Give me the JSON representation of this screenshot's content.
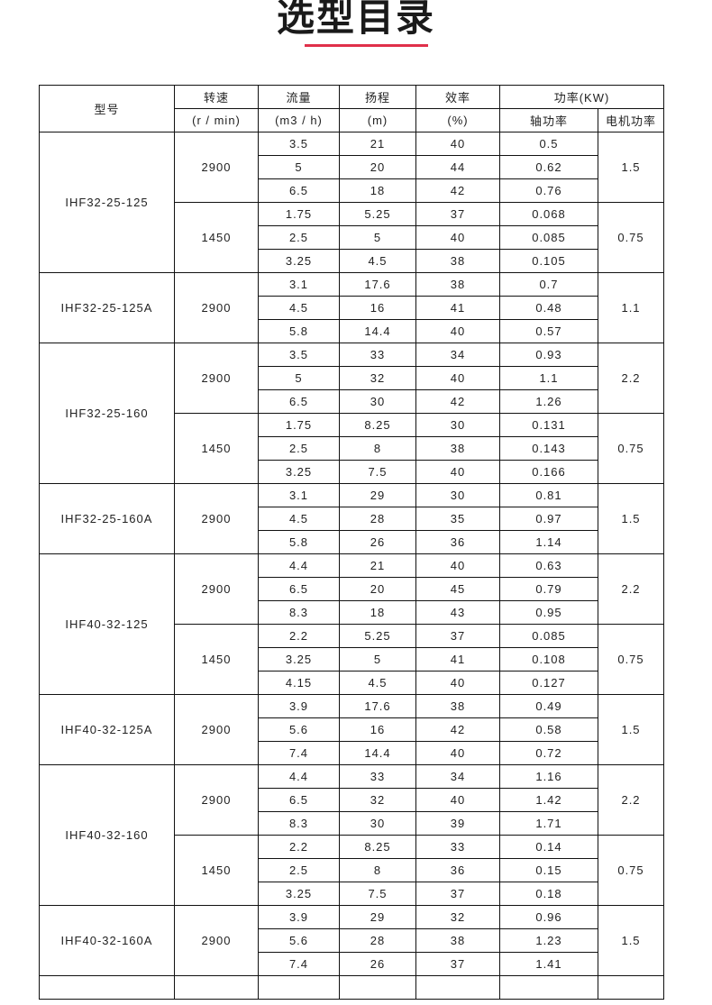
{
  "title": "选型目录",
  "accent_color": "#e0304a",
  "header": {
    "model": "型号",
    "speed": "转速",
    "speed_unit": "(r / min)",
    "flow": "流量",
    "flow_unit": "(m3 / h)",
    "head": "扬程",
    "head_unit": "(m)",
    "eff": "效率",
    "eff_unit": "(%)",
    "power": "功率(KW)",
    "shaft_power": "轴功率",
    "motor_power": "电机功率"
  },
  "models": [
    {
      "model": "IHF32-25-125",
      "speeds": [
        {
          "speed": "2900",
          "motor": "1.5",
          "rows": [
            [
              "3.5",
              "21",
              "40",
              "0.5"
            ],
            [
              "5",
              "20",
              "44",
              "0.62"
            ],
            [
              "6.5",
              "18",
              "42",
              "0.76"
            ]
          ]
        },
        {
          "speed": "1450",
          "motor": "0.75",
          "rows": [
            [
              "1.75",
              "5.25",
              "37",
              "0.068"
            ],
            [
              "2.5",
              "5",
              "40",
              "0.085"
            ],
            [
              "3.25",
              "4.5",
              "38",
              "0.105"
            ]
          ]
        }
      ]
    },
    {
      "model": "IHF32-25-125A",
      "speeds": [
        {
          "speed": "2900",
          "motor": "1.1",
          "rows": [
            [
              "3.1",
              "17.6",
              "38",
              "0.7"
            ],
            [
              "4.5",
              "16",
              "41",
              "0.48"
            ],
            [
              "5.8",
              "14.4",
              "40",
              "0.57"
            ]
          ]
        }
      ]
    },
    {
      "model": "IHF32-25-160",
      "speeds": [
        {
          "speed": "2900",
          "motor": "2.2",
          "rows": [
            [
              "3.5",
              "33",
              "34",
              "0.93"
            ],
            [
              "5",
              "32",
              "40",
              "1.1"
            ],
            [
              "6.5",
              "30",
              "42",
              "1.26"
            ]
          ]
        },
        {
          "speed": "1450",
          "motor": "0.75",
          "rows": [
            [
              "1.75",
              "8.25",
              "30",
              "0.131"
            ],
            [
              "2.5",
              "8",
              "38",
              "0.143"
            ],
            [
              "3.25",
              "7.5",
              "40",
              "0.166"
            ]
          ]
        }
      ]
    },
    {
      "model": "IHF32-25-160A",
      "speeds": [
        {
          "speed": "2900",
          "motor": "1.5",
          "rows": [
            [
              "3.1",
              "29",
              "30",
              "0.81"
            ],
            [
              "4.5",
              "28",
              "35",
              "0.97"
            ],
            [
              "5.8",
              "26",
              "36",
              "1.14"
            ]
          ]
        }
      ]
    },
    {
      "model": "IHF40-32-125",
      "speeds": [
        {
          "speed": "2900",
          "motor": "2.2",
          "rows": [
            [
              "4.4",
              "21",
              "40",
              "0.63"
            ],
            [
              "6.5",
              "20",
              "45",
              "0.79"
            ],
            [
              "8.3",
              "18",
              "43",
              "0.95"
            ]
          ]
        },
        {
          "speed": "1450",
          "motor": "0.75",
          "rows": [
            [
              "2.2",
              "5.25",
              "37",
              "0.085"
            ],
            [
              "3.25",
              "5",
              "41",
              "0.108"
            ],
            [
              "4.15",
              "4.5",
              "40",
              "0.127"
            ]
          ]
        }
      ]
    },
    {
      "model": "IHF40-32-125A",
      "speeds": [
        {
          "speed": "2900",
          "motor": "1.5",
          "rows": [
            [
              "3.9",
              "17.6",
              "38",
              "0.49"
            ],
            [
              "5.6",
              "16",
              "42",
              "0.58"
            ],
            [
              "7.4",
              "14.4",
              "40",
              "0.72"
            ]
          ]
        }
      ]
    },
    {
      "model": "IHF40-32-160",
      "speeds": [
        {
          "speed": "2900",
          "motor": "2.2",
          "rows": [
            [
              "4.4",
              "33",
              "34",
              "1.16"
            ],
            [
              "6.5",
              "32",
              "40",
              "1.42"
            ],
            [
              "8.3",
              "30",
              "39",
              "1.71"
            ]
          ]
        },
        {
          "speed": "1450",
          "motor": "0.75",
          "rows": [
            [
              "2.2",
              "8.25",
              "33",
              "0.14"
            ],
            [
              "2.5",
              "8",
              "36",
              "0.15"
            ],
            [
              "3.25",
              "7.5",
              "37",
              "0.18"
            ]
          ]
        }
      ]
    },
    {
      "model": "IHF40-32-160A",
      "speeds": [
        {
          "speed": "2900",
          "motor": "1.5",
          "rows": [
            [
              "3.9",
              "29",
              "32",
              "0.96"
            ],
            [
              "5.6",
              "28",
              "38",
              "1.23"
            ],
            [
              "7.4",
              "26",
              "37",
              "1.41"
            ]
          ]
        }
      ]
    }
  ]
}
